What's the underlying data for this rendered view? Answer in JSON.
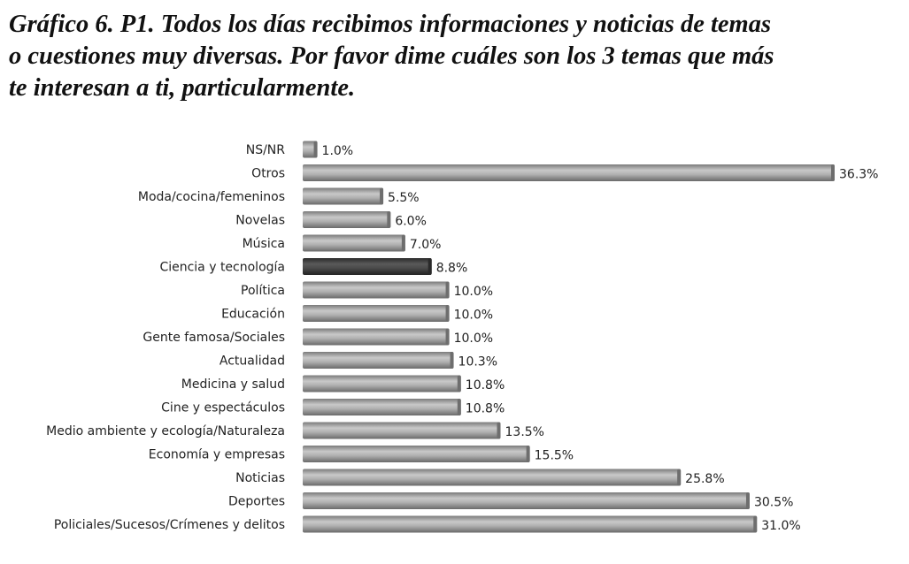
{
  "chart_data": {
    "type": "bar",
    "orientation": "horizontal",
    "title": "Gráfico 6. P1.  Todos los días recibimos informaciones y noticias de temas\no cuestiones muy diversas. Por favor dime cuáles son los 3 temas que más\nte interesan  a  ti, particularmente.",
    "categories": [
      "NS/NR",
      "Otros",
      "Moda/cocina/femeninos",
      "Novelas",
      "Música",
      "Ciencia y tecnología",
      "Política",
      "Educación",
      "Gente famosa/Sociales",
      "Actualidad",
      "Medicina y salud",
      "Cine y espectáculos",
      "Medio ambiente y ecología/Naturaleza",
      "Economía y empresas",
      "Noticias",
      "Deportes",
      "Policiales/Sucesos/Crímenes y delitos"
    ],
    "values": [
      1.0,
      36.3,
      5.5,
      6.0,
      7.0,
      8.8,
      10.0,
      10.0,
      10.0,
      10.3,
      10.8,
      10.8,
      13.5,
      15.5,
      25.8,
      30.5,
      31.0
    ],
    "value_labels": [
      "1.0%",
      "36.3%",
      "5.5%",
      "6.0%",
      "7.0%",
      "8.8%",
      "10.0%",
      "10.0%",
      "10.0%",
      "10.3%",
      "10.8%",
      "10.8%",
      "13.5%",
      "15.5%",
      "25.8%",
      "30.5%",
      "31.0%"
    ],
    "highlight_index": 5,
    "colors": {
      "bar": "#a8a8a8",
      "bar_dark": "#6e6e6e",
      "highlight": "#4a4a4a",
      "highlight_dark": "#2a2a2a"
    },
    "xlabel": "",
    "ylabel": "",
    "xlim": [
      0,
      37
    ],
    "grid": false,
    "legend": "none"
  }
}
